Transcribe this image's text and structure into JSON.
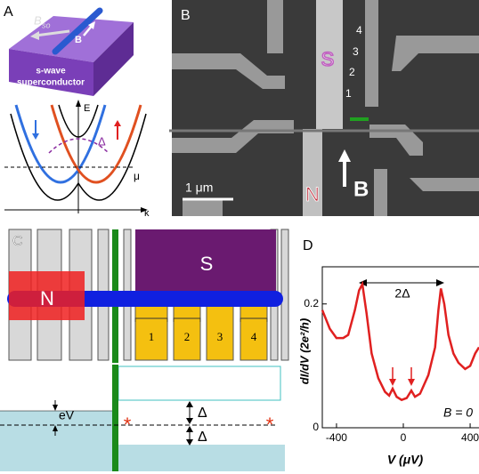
{
  "panel_a": {
    "label": "A",
    "b_so": "B",
    "b_so_sub": "so",
    "b": "B",
    "substrate": [
      "s-wave",
      "superconductor"
    ],
    "e_axis": "E",
    "k_axis": "k",
    "mu": "μ",
    "delta": "Δ"
  },
  "panel_b": {
    "label": "B",
    "s": "S",
    "n": "N",
    "wire_numbers": [
      "4",
      "3",
      "2",
      "1"
    ],
    "field": "B",
    "scale_bar": "1 μm"
  },
  "panel_c": {
    "label": "C",
    "s": "S",
    "n": "N",
    "contacts": [
      "1",
      "2",
      "3",
      "4"
    ],
    "ev": "eV",
    "delta_top": "Δ",
    "delta_bottom": "Δ"
  },
  "chart_data": {
    "type": "line",
    "panel_label": "D",
    "x_label": "V (μV)",
    "y_label": "dI/dV  (2e²/h)",
    "annotations": [
      "2Δ",
      "B = 0"
    ],
    "series": [
      {
        "color": "#e02020",
        "x": [
          -485,
          -440,
          -400,
          -360,
          -330,
          -290,
          -265,
          -245,
          -220,
          -190,
          -150,
          -110,
          -85,
          -64,
          -40,
          -10,
          20,
          48,
          70,
          100,
          150,
          190,
          210,
          225,
          245,
          270,
          300,
          330,
          370,
          400,
          430,
          453
        ],
        "values": [
          0.19,
          0.16,
          0.145,
          0.145,
          0.15,
          0.19,
          0.222,
          0.232,
          0.185,
          0.12,
          0.08,
          0.058,
          0.052,
          0.063,
          0.05,
          0.045,
          0.048,
          0.06,
          0.05,
          0.055,
          0.085,
          0.13,
          0.19,
          0.225,
          0.2,
          0.15,
          0.12,
          0.105,
          0.095,
          0.1,
          0.12,
          0.13
        ]
      }
    ],
    "xlim": [
      -485,
      453
    ],
    "ylim": [
      0,
      0.26
    ],
    "xticks": [
      -400,
      0,
      400
    ],
    "yticks": [
      0,
      0.2
    ]
  }
}
